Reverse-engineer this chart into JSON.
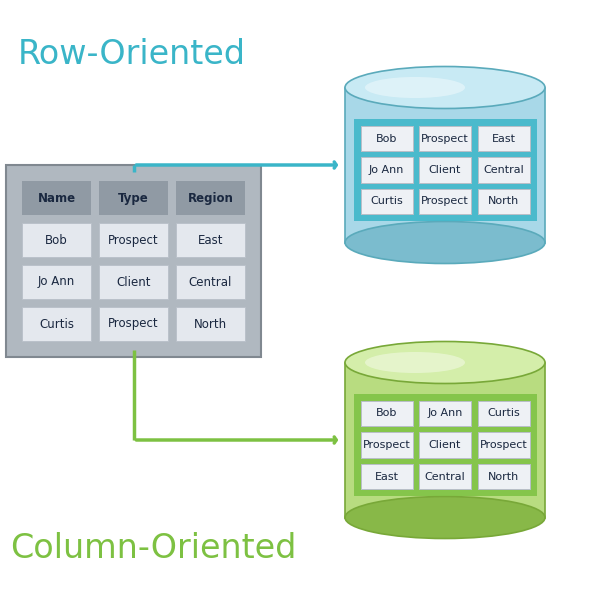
{
  "background_color": "#ffffff",
  "table_data": [
    [
      "Name",
      "Type",
      "Region"
    ],
    [
      "Bob",
      "Prospect",
      "East"
    ],
    [
      "Jo Ann",
      "Client",
      "Central"
    ],
    [
      "Curtis",
      "Prospect",
      "North"
    ]
  ],
  "row_cells": [
    [
      "Bob",
      "Prospect",
      "East"
    ],
    [
      "Jo Ann",
      "Client",
      "Central"
    ],
    [
      "Curtis",
      "Prospect",
      "North"
    ]
  ],
  "col_cells": [
    [
      "Bob",
      "Jo Ann",
      "Curtis"
    ],
    [
      "Prospect",
      "Client",
      "Prospect"
    ],
    [
      "East",
      "Central",
      "North"
    ]
  ],
  "row_label": "Row-Oriented",
  "col_label": "Column-Oriented",
  "row_color": "#3ab5c8",
  "col_color": "#7dc142",
  "cyl_row_body": "#a8d8e8",
  "cyl_row_top": "#c8eaf4",
  "cyl_row_bottom": "#7bbcce",
  "cyl_row_edge": "#5aaabb",
  "cyl_col_body": "#b8dc80",
  "cyl_col_top": "#d4eeaa",
  "cyl_col_bottom": "#88b848",
  "cyl_col_edge": "#78a838",
  "cell_fill": "#eef1f5",
  "cell_fill2": "#d8dde4",
  "cell_border": "#b8bfc8",
  "table_bg": "#b0b8c0",
  "table_header_bg": "#909aa4",
  "table_header_text": "#1a2840",
  "table_row_alt": "#d0d8e0",
  "table_border": "#808890",
  "grid_bg_row": "#3ab5c8",
  "grid_bg_col": "#7dc142",
  "arrow_row_color": "#3ab5c8",
  "arrow_col_color": "#7dc142",
  "arrow_lw": 2.5
}
